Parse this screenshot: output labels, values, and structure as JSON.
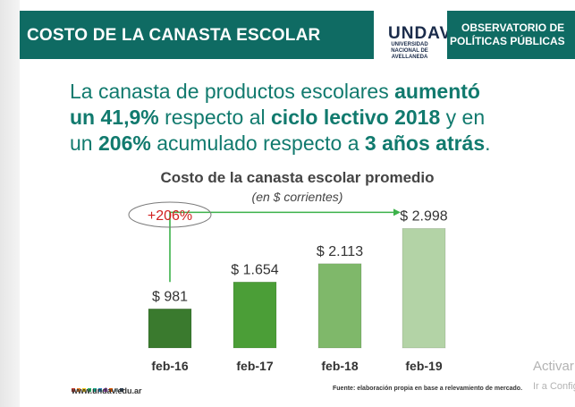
{
  "header": {
    "title": "COSTO DE LA CANASTA ESCOLAR",
    "observatory_line1": "OBSERVATORIO DE",
    "observatory_line2": "POLÍTICAS PÚBLICAS"
  },
  "logo": {
    "mark": "UNDAV",
    "line1": "UNIVERSIDAD",
    "line2": "NACIONAL DE",
    "line3": "AVELLANEDA"
  },
  "headline": {
    "p1": "La canasta de productos escolares ",
    "b1": "aumentó",
    "b2": "un 41,9%",
    "p2": " respecto al ",
    "b3": "ciclo lectivo 2018",
    "p3": " y en",
    "p4": "un ",
    "b4": "206%",
    "p5": " acumulado respecto a ",
    "b5": "3 años atrás",
    "p6": "."
  },
  "chart_data": {
    "type": "bar",
    "title": "Costo de la canasta escolar promedio",
    "subtitle": "(en $ corrientes)",
    "categories": [
      "feb-16",
      "feb-17",
      "feb-18",
      "feb-19"
    ],
    "values": [
      981,
      1654,
      2113,
      2998
    ],
    "value_labels": [
      "$ 981",
      "$ 1.654",
      "$ 2.113",
      "$ 2.998"
    ],
    "ylim": [
      0,
      3500
    ],
    "bar_colors": [
      "#3a7a2e",
      "#4b9e37",
      "#7fb86a",
      "#b3d3a6"
    ],
    "grid": false,
    "annotation": {
      "label": "+206%",
      "from_category": "feb-16",
      "to_category": "feb-19",
      "line_color": "#3cb24a",
      "label_color": "#d11f1f"
    }
  },
  "footer": {
    "url": "www.undav.edu.ar",
    "source": "Fuente: elaboración propia en base a relevamiento de mercado.",
    "dot_colors": [
      "#c0392b",
      "#e67e22",
      "#f1c40f",
      "#27ae60",
      "#16a085",
      "#2980b9",
      "#8e44ad",
      "#d35400",
      "#7f8c8d",
      "#2c3e50"
    ]
  },
  "watermark": {
    "line1": "Activar Windows",
    "line2": "Ir a Configuración para activar Windows."
  },
  "colors": {
    "brand_teal": "#0f6b63",
    "headline_teal": "#117a6e"
  }
}
